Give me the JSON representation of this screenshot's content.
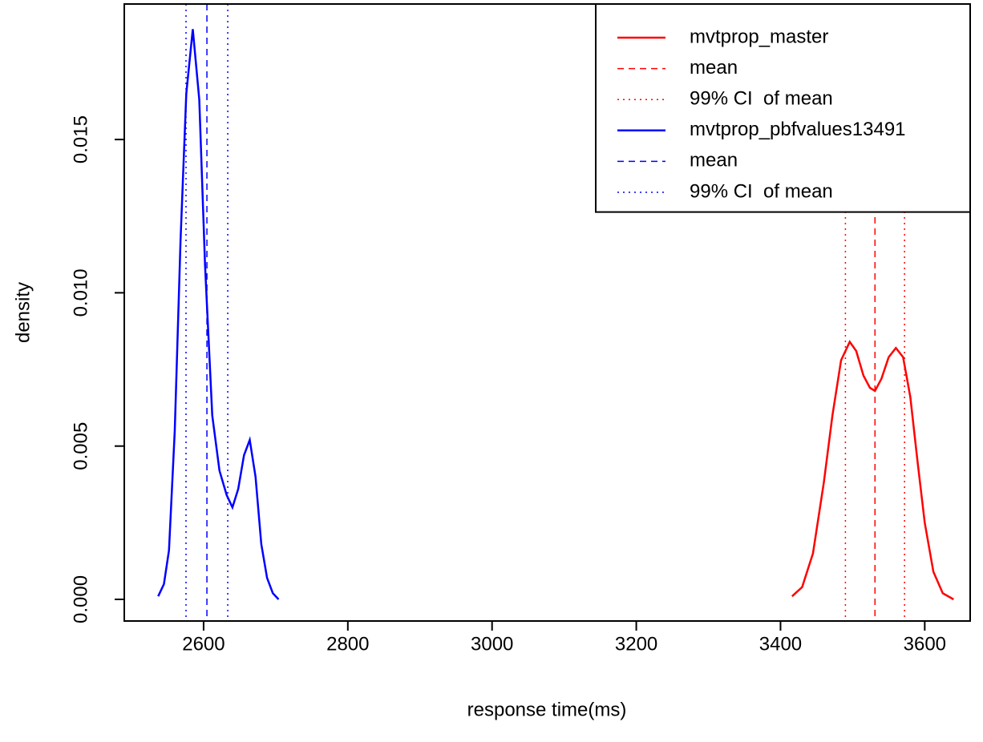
{
  "chart_data": {
    "type": "line",
    "xlabel": "response time(ms)",
    "ylabel": "density",
    "xlim": [
      2490,
      3663
    ],
    "ylim": [
      -0.000706,
      0.01942
    ],
    "xticks": [
      2600,
      2800,
      3000,
      3200,
      3400,
      3600
    ],
    "yticks": [
      {
        "value": 0,
        "label": "0.000"
      },
      {
        "value": 0.005,
        "label": "0.005"
      },
      {
        "value": 0.01,
        "label": "0.010"
      },
      {
        "value": 0.015,
        "label": "0.015"
      }
    ],
    "legend": "top-right",
    "series": [
      {
        "name": "mvtprop_master",
        "color": "#ff0000",
        "style": "solid",
        "x": [
          3416,
          3430,
          3445,
          3460,
          3472,
          3484,
          3496,
          3505,
          3515,
          3524,
          3531,
          3540,
          3550,
          3560,
          3570,
          3580,
          3590,
          3600,
          3612,
          3625,
          3640
        ],
        "values": [
          0.0001,
          0.0004,
          0.0015,
          0.0038,
          0.006,
          0.0078,
          0.0084,
          0.0081,
          0.0073,
          0.0069,
          0.0068,
          0.0072,
          0.0079,
          0.0082,
          0.0079,
          0.0066,
          0.0045,
          0.0025,
          0.0009,
          0.0002,
          0
        ]
      },
      {
        "name": "mean",
        "color": "#ff0000",
        "style": "dashed",
        "x": [
          3531
        ]
      },
      {
        "name": "99% CI  of mean",
        "color": "#ff0000",
        "style": "dotted",
        "x": [
          3490,
          3572
        ]
      },
      {
        "name": "mvtprop_pbfvalues13491",
        "color": "#0000ff",
        "style": "solid",
        "x": [
          2537,
          2545,
          2552,
          2560,
          2568,
          2576,
          2585,
          2594,
          2602,
          2612,
          2622,
          2632,
          2640,
          2648,
          2656,
          2664,
          2672,
          2680,
          2688,
          2696,
          2704
        ],
        "values": [
          0.0001,
          0.0005,
          0.0016,
          0.0055,
          0.0117,
          0.0165,
          0.0186,
          0.0163,
          0.0109,
          0.006,
          0.0042,
          0.0034,
          0.003,
          0.0036,
          0.0047,
          0.0052,
          0.004,
          0.0018,
          0.0007,
          0.0002,
          0
        ]
      },
      {
        "name": "mean",
        "color": "#0000ff",
        "style": "dashed",
        "x": [
          2604.6
        ]
      },
      {
        "name": "99% CI  of mean",
        "color": "#0000ff",
        "style": "dotted",
        "x": [
          2575.6,
          2633.5
        ]
      }
    ]
  }
}
